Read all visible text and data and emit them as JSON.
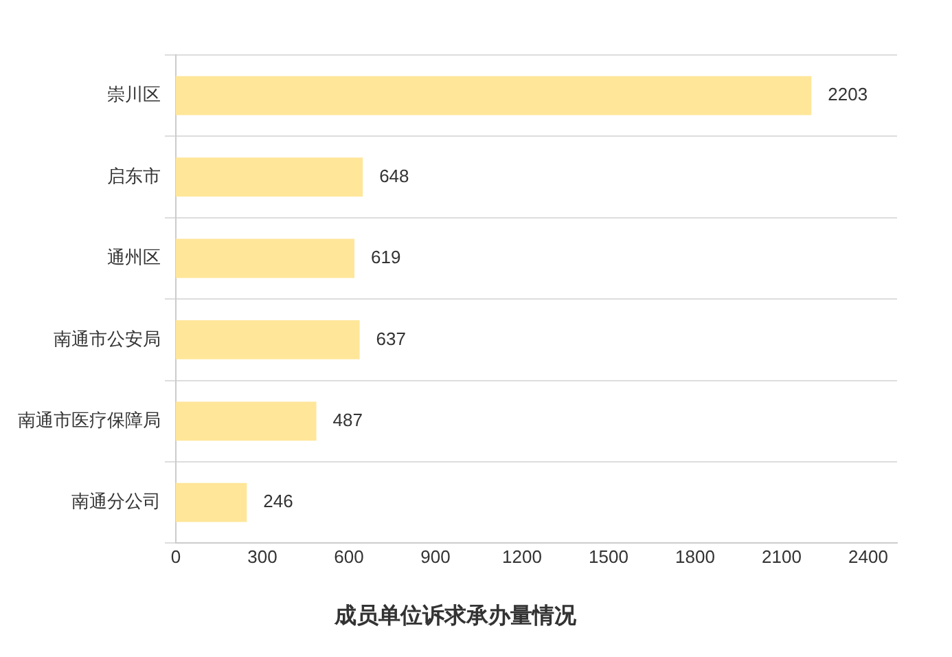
{
  "chart_data": {
    "type": "bar",
    "orientation": "horizontal",
    "title": "成员单位诉求承办量情况",
    "categories": [
      "崇川区",
      "启东市",
      "通州区",
      "南通市公安局",
      "南通市医疗保障局",
      "南通分公司"
    ],
    "values": [
      2203,
      648,
      619,
      637,
      487,
      246
    ],
    "color": "#ffe699",
    "xlim": [
      0,
      2500
    ],
    "xticks": [
      0,
      300,
      600,
      900,
      1200,
      1500,
      1800,
      2100,
      2400
    ],
    "grid": "y",
    "data_labels": true,
    "legend": false
  }
}
